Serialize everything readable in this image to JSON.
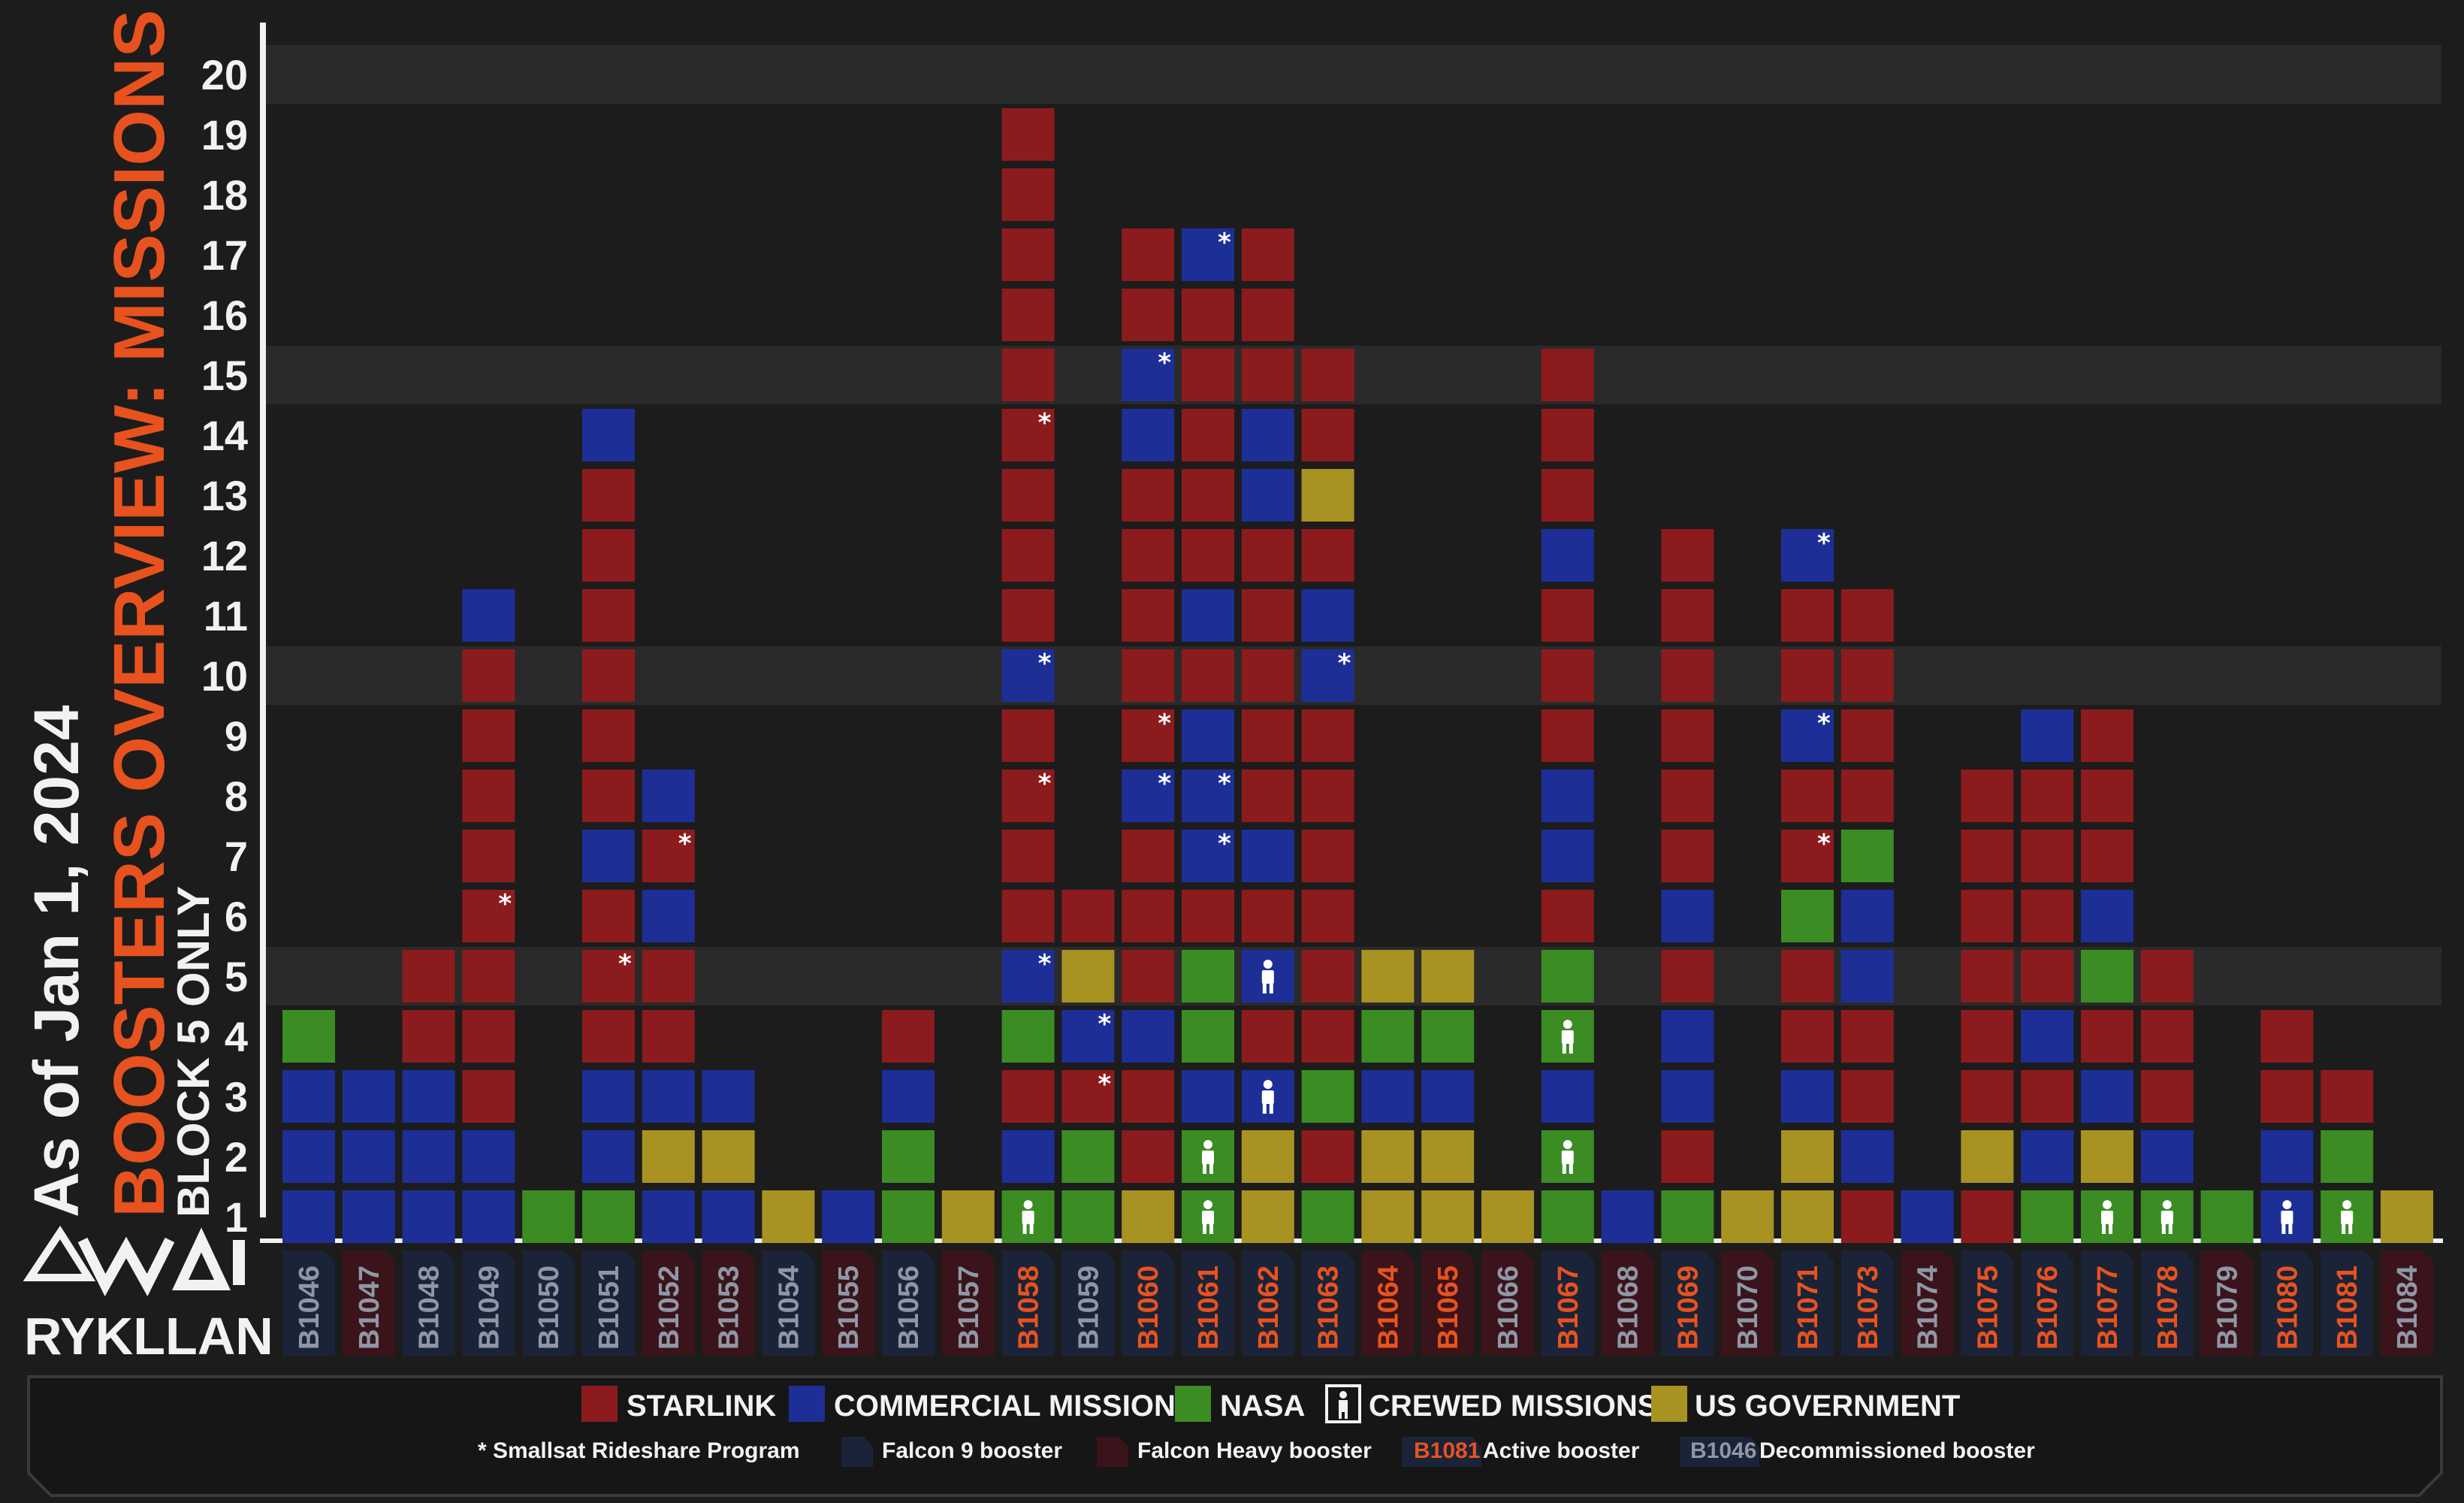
{
  "header": {
    "as_of": "As of Jan 1, 2024",
    "title": "BOOSTERS OVERVIEW: MISSIONS",
    "subtitle": "BLOCK 5 ONLY"
  },
  "logo": {
    "text": "RYKLLAN",
    "mark": "WAI"
  },
  "colors": {
    "S": "#8c1b1e",
    "C": "#1d2f96",
    "N": "#3a8c23",
    "G": "#a89322",
    "active_label": "#e8521e",
    "decom_label": "#8f97a6",
    "f9_tab": "#1a2338",
    "fh_tab": "#3a141a",
    "background": "#1c1c1c",
    "band": "#2a2a2a"
  },
  "legend": {
    "starlink": "STARLINK",
    "commercial": "COMMERCIAL MISSIONS",
    "nasa": "NASA",
    "crewed": "CREWED MISSIONS",
    "usgov": "US GOVERNMENT",
    "rideshare": "* Smallsat Rideshare Program",
    "f9": "Falcon 9 booster",
    "fh": "Falcon Heavy booster",
    "active_example": "B1081",
    "active": "Active booster",
    "decom_example": "B1046",
    "decom": "Decommissioned booster"
  },
  "chart_data": {
    "type": "bar",
    "title": "BOOSTERS OVERVIEW: MISSIONS",
    "ylim": [
      1,
      20
    ],
    "y_ticks": [
      "1",
      "2",
      "3",
      "4",
      "5",
      "6",
      "7",
      "8",
      "9",
      "10",
      "11",
      "12",
      "13",
      "14",
      "15",
      "16",
      "17",
      "18",
      "19",
      "20"
    ],
    "categories_legend": {
      "S": "STARLINK",
      "C": "COMMERCIAL MISSIONS",
      "N": "NASA",
      "G": "US GOVERNMENT"
    },
    "boosters": [
      {
        "name": "B1046",
        "type": "F9",
        "status": "decommissioned",
        "missions": [
          "C",
          "C",
          "C",
          "N"
        ],
        "crewed": [],
        "rideshare": []
      },
      {
        "name": "B1047",
        "type": "FH",
        "status": "decommissioned",
        "missions": [
          "C",
          "C",
          "C"
        ],
        "crewed": [],
        "rideshare": []
      },
      {
        "name": "B1048",
        "type": "F9",
        "status": "decommissioned",
        "missions": [
          "C",
          "C",
          "C",
          "S",
          "S"
        ],
        "crewed": [],
        "rideshare": []
      },
      {
        "name": "B1049",
        "type": "F9",
        "status": "decommissioned",
        "missions": [
          "C",
          "C",
          "S",
          "S",
          "S",
          "S",
          "S",
          "S",
          "S",
          "S",
          "C"
        ],
        "crewed": [],
        "rideshare": [
          6
        ]
      },
      {
        "name": "B1050",
        "type": "F9",
        "status": "decommissioned",
        "missions": [
          "N"
        ],
        "crewed": [],
        "rideshare": []
      },
      {
        "name": "B1051",
        "type": "F9",
        "status": "decommissioned",
        "missions": [
          "N",
          "C",
          "C",
          "S",
          "S",
          "S",
          "C",
          "S",
          "S",
          "S",
          "S",
          "S",
          "S",
          "C"
        ],
        "crewed": [],
        "rideshare": [
          5
        ]
      },
      {
        "name": "B1052",
        "type": "FH",
        "status": "decommissioned",
        "missions": [
          "C",
          "G",
          "C",
          "S",
          "S",
          "C",
          "S",
          "C"
        ],
        "crewed": [],
        "rideshare": [
          7
        ]
      },
      {
        "name": "B1053",
        "type": "FH",
        "status": "decommissioned",
        "missions": [
          "C",
          "G",
          "C"
        ],
        "crewed": [],
        "rideshare": []
      },
      {
        "name": "B1054",
        "type": "F9",
        "status": "decommissioned",
        "missions": [
          "G"
        ],
        "crewed": [],
        "rideshare": []
      },
      {
        "name": "B1055",
        "type": "FH",
        "status": "decommissioned",
        "missions": [
          "C"
        ],
        "crewed": [],
        "rideshare": []
      },
      {
        "name": "B1056",
        "type": "F9",
        "status": "decommissioned",
        "missions": [
          "N",
          "N",
          "C",
          "S"
        ],
        "crewed": [],
        "rideshare": []
      },
      {
        "name": "B1057",
        "type": "FH",
        "status": "decommissioned",
        "missions": [
          "G"
        ],
        "crewed": [],
        "rideshare": []
      },
      {
        "name": "B1058",
        "type": "F9",
        "status": "active",
        "missions": [
          "N",
          "C",
          "S",
          "N",
          "C",
          "S",
          "S",
          "S",
          "S",
          "C",
          "S",
          "S",
          "S",
          "S",
          "S",
          "S",
          "S",
          "S",
          "S"
        ],
        "crewed": [
          1
        ],
        "rideshare": [
          5,
          8,
          10,
          14
        ]
      },
      {
        "name": "B1059",
        "type": "F9",
        "status": "decommissioned",
        "missions": [
          "N",
          "N",
          "S",
          "C",
          "G",
          "S"
        ],
        "crewed": [],
        "rideshare": [
          3,
          4
        ]
      },
      {
        "name": "B1060",
        "type": "F9",
        "status": "active",
        "missions": [
          "G",
          "S",
          "S",
          "C",
          "S",
          "S",
          "S",
          "C",
          "S",
          "S",
          "S",
          "S",
          "S",
          "C",
          "C",
          "S",
          "S"
        ],
        "crewed": [],
        "rideshare": [
          8,
          9,
          15
        ]
      },
      {
        "name": "B1061",
        "type": "F9",
        "status": "active",
        "missions": [
          "N",
          "N",
          "C",
          "N",
          "N",
          "S",
          "C",
          "C",
          "C",
          "S",
          "C",
          "S",
          "S",
          "S",
          "S",
          "S",
          "C"
        ],
        "crewed": [
          1,
          2
        ],
        "rideshare": [
          7,
          8,
          17
        ]
      },
      {
        "name": "B1062",
        "type": "F9",
        "status": "active",
        "missions": [
          "G",
          "G",
          "C",
          "S",
          "C",
          "S",
          "C",
          "S",
          "S",
          "S",
          "S",
          "S",
          "C",
          "C",
          "S",
          "S",
          "S"
        ],
        "crewed": [
          3,
          5
        ],
        "rideshare": []
      },
      {
        "name": "B1063",
        "type": "F9",
        "status": "active",
        "missions": [
          "N",
          "S",
          "N",
          "S",
          "S",
          "S",
          "S",
          "S",
          "S",
          "C",
          "C",
          "S",
          "G",
          "S",
          "S"
        ],
        "crewed": [],
        "rideshare": [
          10
        ]
      },
      {
        "name": "B1064",
        "type": "FH",
        "status": "active",
        "missions": [
          "G",
          "G",
          "C",
          "N",
          "G"
        ],
        "crewed": [],
        "rideshare": []
      },
      {
        "name": "B1065",
        "type": "FH",
        "status": "active",
        "missions": [
          "G",
          "G",
          "C",
          "N",
          "G"
        ],
        "crewed": [],
        "rideshare": []
      },
      {
        "name": "B1066",
        "type": "FH",
        "status": "decommissioned",
        "missions": [
          "G"
        ],
        "crewed": [],
        "rideshare": []
      },
      {
        "name": "B1067",
        "type": "F9",
        "status": "active",
        "missions": [
          "N",
          "N",
          "C",
          "N",
          "N",
          "S",
          "C",
          "C",
          "S",
          "S",
          "S",
          "C",
          "S",
          "S",
          "S"
        ],
        "crewed": [
          2,
          4
        ],
        "rideshare": []
      },
      {
        "name": "B1068",
        "type": "FH",
        "status": "decommissioned",
        "missions": [
          "C"
        ],
        "crewed": [],
        "rideshare": []
      },
      {
        "name": "B1069",
        "type": "F9",
        "status": "active",
        "missions": [
          "N",
          "S",
          "C",
          "C",
          "S",
          "C",
          "S",
          "S",
          "S",
          "S",
          "S",
          "S"
        ],
        "crewed": [],
        "rideshare": []
      },
      {
        "name": "B1070",
        "type": "FH",
        "status": "decommissioned",
        "missions": [
          "G"
        ],
        "crewed": [],
        "rideshare": []
      },
      {
        "name": "B1071",
        "type": "F9",
        "status": "active",
        "missions": [
          "G",
          "G",
          "C",
          "S",
          "S",
          "N",
          "S",
          "S",
          "C",
          "S",
          "S",
          "C"
        ],
        "crewed": [],
        "rideshare": [
          7,
          9,
          12
        ]
      },
      {
        "name": "B1073",
        "type": "F9",
        "status": "active",
        "missions": [
          "S",
          "C",
          "S",
          "S",
          "C",
          "C",
          "N",
          "S",
          "S",
          "S",
          "S"
        ],
        "crewed": [],
        "rideshare": []
      },
      {
        "name": "B1074",
        "type": "FH",
        "status": "decommissioned",
        "missions": [
          "C"
        ],
        "crewed": [],
        "rideshare": []
      },
      {
        "name": "B1075",
        "type": "F9",
        "status": "active",
        "missions": [
          "S",
          "G",
          "S",
          "S",
          "S",
          "S",
          "S",
          "S"
        ],
        "crewed": [],
        "rideshare": []
      },
      {
        "name": "B1076",
        "type": "F9",
        "status": "active",
        "missions": [
          "N",
          "C",
          "S",
          "C",
          "S",
          "S",
          "S",
          "S",
          "C"
        ],
        "crewed": [],
        "rideshare": []
      },
      {
        "name": "B1077",
        "type": "F9",
        "status": "active",
        "missions": [
          "N",
          "G",
          "C",
          "S",
          "N",
          "C",
          "S",
          "S",
          "S"
        ],
        "crewed": [
          1
        ],
        "rideshare": []
      },
      {
        "name": "B1078",
        "type": "F9",
        "status": "active",
        "missions": [
          "N",
          "C",
          "S",
          "S",
          "S"
        ],
        "crewed": [
          1
        ],
        "rideshare": []
      },
      {
        "name": "B1079",
        "type": "FH",
        "status": "decommissioned",
        "missions": [
          "N"
        ],
        "crewed": [],
        "rideshare": []
      },
      {
        "name": "B1080",
        "type": "F9",
        "status": "active",
        "missions": [
          "C",
          "C",
          "S",
          "S"
        ],
        "crewed": [
          1
        ],
        "rideshare": []
      },
      {
        "name": "B1081",
        "type": "F9",
        "status": "active",
        "missions": [
          "N",
          "N",
          "S"
        ],
        "crewed": [
          1
        ],
        "rideshare": []
      },
      {
        "name": "B1084",
        "type": "FH",
        "status": "decommissioned",
        "missions": [
          "G"
        ],
        "crewed": [],
        "rideshare": []
      }
    ]
  }
}
